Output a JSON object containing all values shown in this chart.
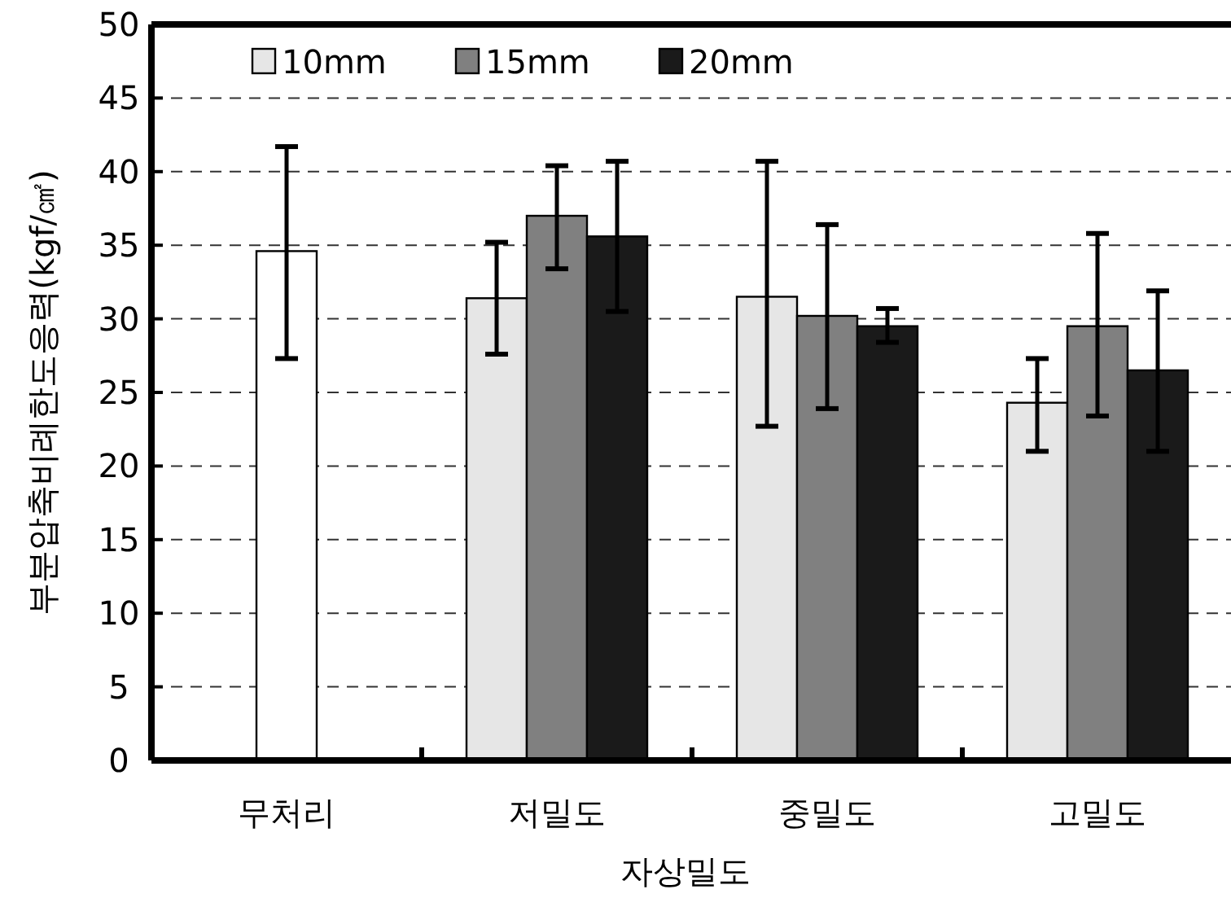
{
  "chart_data": {
    "type": "bar",
    "xlabel": "자상밀도",
    "ylabel": "부분압축비례한도응력(kgf/㎠)",
    "categories": [
      "무처리",
      "저밀도",
      "중밀도",
      "고밀도"
    ],
    "series": [
      {
        "color": "#ffffff",
        "values": [
          34.6,
          null,
          null,
          null
        ],
        "errors": [
          [
            27.3,
            41.7
          ],
          null,
          null,
          null
        ]
      },
      {
        "name": "10mm",
        "color": "#e6e6e6",
        "values": [
          null,
          31.4,
          31.5,
          24.3
        ],
        "errors": [
          null,
          [
            27.6,
            35.2
          ],
          [
            22.7,
            40.7
          ],
          [
            21.0,
            27.3
          ]
        ]
      },
      {
        "name": "15mm",
        "color": "#808080",
        "values": [
          null,
          37.0,
          30.2,
          29.5
        ],
        "errors": [
          null,
          [
            33.4,
            40.4
          ],
          [
            23.9,
            36.4
          ],
          [
            23.4,
            35.8
          ]
        ]
      },
      {
        "name": "20mm",
        "color": "#1a1a1a",
        "values": [
          null,
          35.6,
          29.5,
          26.5
        ],
        "errors": [
          null,
          [
            30.5,
            40.7
          ],
          [
            28.4,
            30.7
          ],
          [
            21.0,
            31.9
          ]
        ]
      }
    ],
    "ylim": [
      0,
      50
    ],
    "yticks": [
      0,
      5,
      10,
      15,
      20,
      25,
      30,
      35,
      40,
      45,
      50
    ],
    "grid": "y",
    "legend": "top left"
  }
}
